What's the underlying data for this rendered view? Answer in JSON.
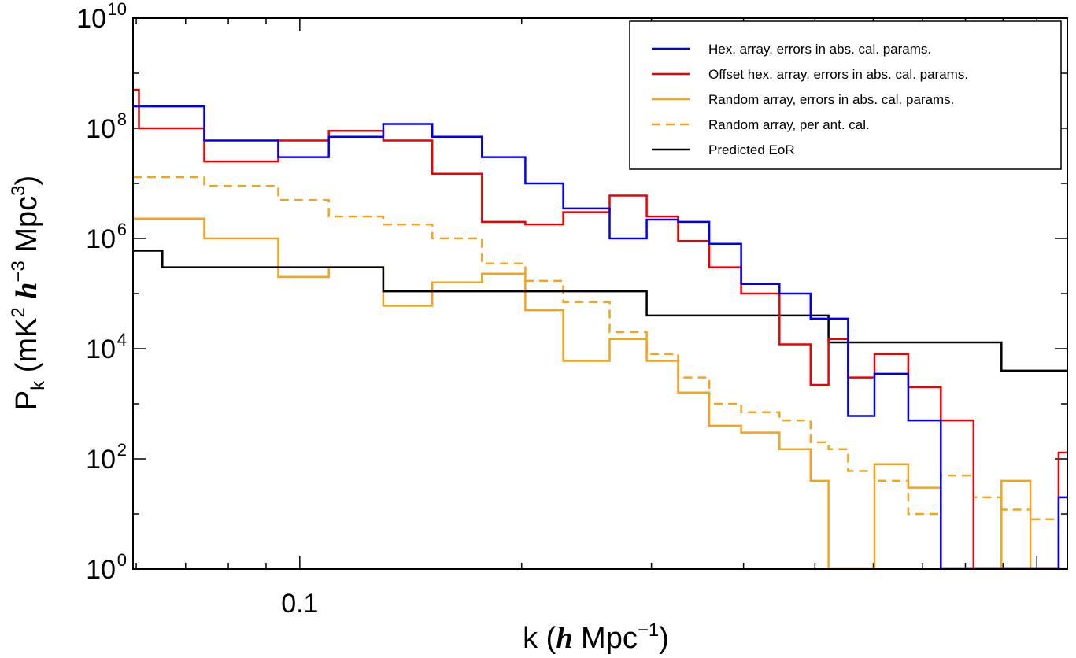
{
  "chart_data": {
    "type": "line",
    "step": true,
    "title": "",
    "xlabel": {
      "prefix": "k (",
      "ital": "h",
      "unit": " Mpc",
      "sup": "−1",
      "suffix": ")"
    },
    "ylabel": {
      "p": "P",
      "sub": "k",
      "open": " (mK",
      "sup2": "2",
      "ital": "h",
      "sup3": "−3",
      "unit": " Mpc",
      "sup4": "3",
      "close": ")"
    },
    "x_scale": "log",
    "y_scale": "log",
    "xlim": [
      0.0594,
      1.1
    ],
    "ylim": [
      1,
      10000000000
    ],
    "x_ticks": [
      {
        "value": 0.1,
        "label": "0.1"
      }
    ],
    "y_ticks": [
      {
        "value": 1,
        "base": "10",
        "exp": "0"
      },
      {
        "value": 100,
        "base": "10",
        "exp": "2"
      },
      {
        "value": 10000,
        "base": "10",
        "exp": "4"
      },
      {
        "value": 1000000,
        "base": "10",
        "exp": "6"
      },
      {
        "value": 100000000,
        "base": "10",
        "exp": "8"
      },
      {
        "value": 10000000000,
        "base": "10",
        "exp": "10"
      }
    ],
    "legend_position": "top-right",
    "series": [
      {
        "name": "Hex. array, errors in abs. cal. params.",
        "color": "#0000ee",
        "dash": "solid",
        "x": [
          0.0594,
          0.0742,
          0.0935,
          0.1095,
          0.1298,
          0.1513,
          0.1767,
          0.2023,
          0.2278,
          0.2633,
          0.2956,
          0.3261,
          0.3594,
          0.3971,
          0.4476,
          0.4932,
          0.5545,
          0.6022,
          0.6693,
          0.7409,
          0.8206,
          0.8954,
          0.9802,
          1.0705
        ],
        "y": [
          250000000,
          60000000,
          30000000,
          70000000,
          120000000,
          70000000,
          30000000,
          10000000,
          3500000,
          1000000,
          2200000,
          2000000,
          800000,
          150000,
          100000,
          35000,
          600,
          3500,
          500,
          1,
          1,
          1,
          1,
          20
        ]
      },
      {
        "name": "Offset hex. array, errors in abs. cal. params.",
        "color": "#ee0000",
        "dash": "solid",
        "x": [
          0.0594,
          0.0605,
          0.0742,
          0.0862,
          0.0935,
          0.1095,
          0.1298,
          0.1513,
          0.1767,
          0.2023,
          0.2278,
          0.2633,
          0.2956,
          0.3261,
          0.3594,
          0.3971,
          0.4476,
          0.4932,
          0.5216,
          0.5545,
          0.6022,
          0.6693,
          0.7409,
          0.8206,
          0.8954,
          0.9802,
          1.0705
        ],
        "y": [
          500000000,
          100000000,
          25000000,
          25000000,
          60000000,
          90000000,
          60000000,
          15000000,
          2000000,
          1800000,
          3000000,
          6000000,
          2500000,
          900000,
          300000,
          100000,
          12000,
          2200,
          15000,
          3000,
          8000,
          2000,
          500,
          1,
          1,
          1,
          130
        ]
      },
      {
        "name": "Random array, errors in abs. cal. params.",
        "color": "#f4a41a",
        "dash": "solid",
        "x": [
          0.0594,
          0.0742,
          0.0935,
          0.1095,
          0.1298,
          0.1513,
          0.1767,
          0.2023,
          0.2278,
          0.2633,
          0.2956,
          0.3261,
          0.3594,
          0.3971,
          0.4476,
          0.4932,
          0.5216,
          0.5545,
          0.6022,
          0.6693,
          0.7409,
          0.8206,
          0.8954,
          0.9802,
          1.0705
        ],
        "y": [
          2300000,
          1000000,
          200000,
          300000,
          60000,
          160000,
          230000,
          50000,
          6000,
          15000,
          6000,
          1600,
          400,
          300,
          150,
          40,
          1,
          1,
          80,
          30,
          1,
          1,
          40,
          1,
          1
        ]
      },
      {
        "name": "Random array, per ant. cal.",
        "color": "#f4a41a",
        "dash": "dashed",
        "x": [
          0.0594,
          0.0742,
          0.0935,
          0.1095,
          0.1298,
          0.1513,
          0.1767,
          0.2023,
          0.2278,
          0.2633,
          0.2956,
          0.3261,
          0.3594,
          0.3971,
          0.4476,
          0.4932,
          0.5216,
          0.5545,
          0.6022,
          0.6693,
          0.7409,
          0.8206,
          0.8954,
          0.9802,
          1.0705
        ],
        "y": [
          13000000,
          9000000,
          5000000,
          2500000,
          1800000,
          1000000,
          350000,
          170000,
          70000,
          20000,
          8000,
          3000,
          1000,
          700,
          500,
          200,
          150,
          60,
          40,
          10,
          50,
          20,
          12,
          8,
          1
        ]
      },
      {
        "name": "Predicted EoR",
        "color": "#000000",
        "dash": "solid",
        "x": [
          0.0594,
          0.0651,
          0.1298,
          0.2956,
          0.5216,
          0.8954,
          1.1
        ],
        "y": [
          600000,
          300000,
          110000,
          40000,
          13000,
          4000,
          4000
        ]
      }
    ]
  }
}
